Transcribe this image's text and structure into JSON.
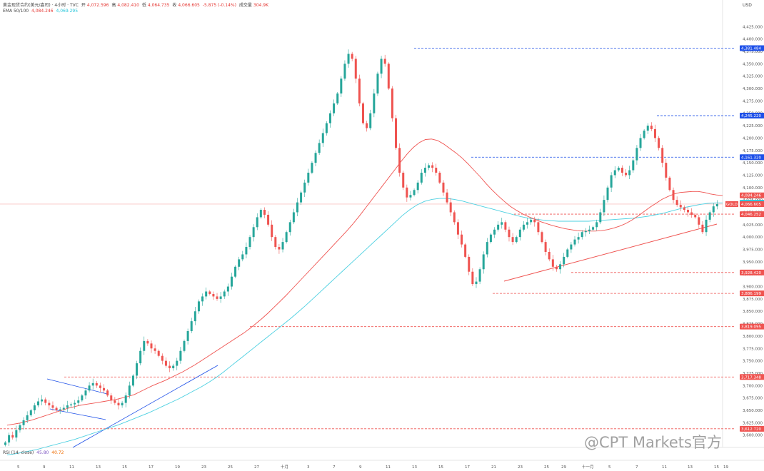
{
  "header": {
    "title": "黄金现货合约(美元/盎司) · 4小时 · TVC",
    "o_label": "开",
    "o": "4,072.596",
    "h_label": "高",
    "h": "4,082.410",
    "l_label": "低",
    "l": "4,064.735",
    "c_label": "收",
    "c": "4,066.605",
    "chg": "-5.875 (-0.14%)",
    "vol_label": "成交量",
    "vol": "304.9K",
    "ema_label": "EMA 50/100",
    "ema50": "4,084.246",
    "ema100": "4,069.295"
  },
  "rsi": {
    "label": "RSI (14, close)",
    "v1": "45.80",
    "v2": "40.72"
  },
  "currency": "USD",
  "watermark": "@CPT Markets官方",
  "colors": {
    "up": "#26a69a",
    "down": "#ef5350",
    "ema50": "#ef5350",
    "ema100": "#4dd0e1",
    "blue": "#1e50e8",
    "price_tag": "#ef5350"
  },
  "chart_data": {
    "type": "candlestick",
    "timeframe": "4h",
    "ylim": [
      3575,
      4450
    ],
    "y_ticks": [
      "4,425.000",
      "4,400.000",
      "4,375.000",
      "4,350.000",
      "4,325.000",
      "4,300.000",
      "4,275.000",
      "4,250.000",
      "4,225.000",
      "4,200.000",
      "4,175.000",
      "4,150.000",
      "4,125.000",
      "4,100.000",
      "4,075.000",
      "4,050.000",
      "4,025.000",
      "4,000.000",
      "3,975.000",
      "3,950.000",
      "3,925.000",
      "3,900.000",
      "3,875.000",
      "3,850.000",
      "3,825.000",
      "3,800.000",
      "3,775.000",
      "3,750.000",
      "3,725.000",
      "3,700.000",
      "3,675.000",
      "3,650.000",
      "3,625.000",
      "3,600.000"
    ],
    "x_ticks": [
      "5",
      "9",
      "11",
      "13",
      "15",
      "17",
      "19",
      "23",
      "25",
      "27",
      "十月",
      "3",
      "7",
      "9",
      "11",
      "13",
      "15",
      "17",
      "21",
      "23",
      "25",
      "29",
      "十一月",
      "5",
      "7",
      "11",
      "13",
      "15",
      "19"
    ],
    "levels": [
      {
        "value": 4381.484,
        "label": "4,381.484",
        "style": "blue"
      },
      {
        "value": 4245.22,
        "label": "4,245.220",
        "style": "blue"
      },
      {
        "value": 4161.32,
        "label": "4,161.320",
        "style": "blue"
      },
      {
        "value": 4046.252,
        "label": "4,046.252",
        "style": "red"
      },
      {
        "value": 3928.42,
        "label": "3,928.420",
        "style": "red"
      },
      {
        "value": 3886.199,
        "label": "3,886.199",
        "style": "red"
      },
      {
        "value": 3819.095,
        "label": "3,819.095",
        "style": "red"
      },
      {
        "value": 3717.348,
        "label": "3,717.348",
        "style": "red"
      },
      {
        "value": 3612.72,
        "label": "3,612.720",
        "style": "red"
      }
    ],
    "tags": [
      {
        "value": 4084.246,
        "label": "4,084.246",
        "color": "#ef5350"
      },
      {
        "value": 4069.295,
        "label": "4,069.295",
        "color": "#26c6da"
      },
      {
        "value": 4066.605,
        "label": "4,066.605",
        "color": "#ef5350",
        "symbol": "GOLD"
      }
    ],
    "closes": [
      3585,
      3600,
      3595,
      3610,
      3620,
      3630,
      3640,
      3650,
      3660,
      3668,
      3672,
      3665,
      3660,
      3655,
      3650,
      3652,
      3655,
      3660,
      3662,
      3665,
      3670,
      3680,
      3690,
      3700,
      3705,
      3700,
      3695,
      3690,
      3680,
      3670,
      3665,
      3660,
      3665,
      3680,
      3700,
      3720,
      3745,
      3770,
      3790,
      3785,
      3775,
      3770,
      3760,
      3750,
      3740,
      3735,
      3740,
      3750,
      3770,
      3790,
      3810,
      3830,
      3850,
      3870,
      3880,
      3890,
      3885,
      3880,
      3875,
      3880,
      3890,
      3900,
      3920,
      3940,
      3955,
      3965,
      3980,
      4000,
      4020,
      4040,
      4055,
      4045,
      4025,
      4000,
      3980,
      3975,
      3990,
      4010,
      4030,
      4050,
      4070,
      4090,
      4110,
      4130,
      4150,
      4170,
      4190,
      4210,
      4230,
      4250,
      4270,
      4290,
      4320,
      4350,
      4370,
      4360,
      4320,
      4270,
      4230,
      4220,
      4250,
      4290,
      4330,
      4360,
      4350,
      4300,
      4240,
      4180,
      4130,
      4100,
      4080,
      4085,
      4095,
      4110,
      4130,
      4140,
      4145,
      4140,
      4130,
      4110,
      4090,
      4070,
      4050,
      4030,
      4005,
      3985,
      3960,
      3930,
      3905,
      3910,
      3935,
      3965,
      3990,
      4005,
      4015,
      4025,
      4030,
      4015,
      4000,
      3990,
      4000,
      4015,
      4025,
      4030,
      4035,
      4030,
      4010,
      3990,
      3970,
      3955,
      3940,
      3935,
      3945,
      3960,
      3975,
      3985,
      3995,
      4000,
      4010,
      4012,
      4015,
      4020,
      4030,
      4050,
      4075,
      4100,
      4125,
      4135,
      4140,
      4130,
      4125,
      4135,
      4155,
      4180,
      4200,
      4215,
      4225,
      4218,
      4200,
      4180,
      4150,
      4120,
      4095,
      4075,
      4065,
      4060,
      4055,
      4050,
      4045,
      4040,
      4025,
      4010,
      4035,
      4050,
      4062,
      4066.6
    ],
    "ema50": [
      3620,
      3622,
      3624,
      3627,
      3630,
      3634,
      3638,
      3642,
      3646,
      3650,
      3654,
      3657,
      3660,
      3662,
      3664,
      3666,
      3668,
      3670,
      3672,
      3675,
      3678,
      3682,
      3688,
      3694,
      3700,
      3705,
      3710,
      3716,
      3722,
      3728,
      3735,
      3742,
      3750,
      3758,
      3766,
      3774,
      3782,
      3790,
      3798,
      3806,
      3815,
      3825,
      3835,
      3846,
      3858,
      3870,
      3882,
      3895,
      3908,
      3921,
      3934,
      3947,
      3960,
      3973,
      3986,
      3999,
      4012,
      4026,
      4041,
      4057,
      4073,
      4089,
      4105,
      4121,
      4137,
      4153,
      4168,
      4181,
      4191,
      4197,
      4198,
      4195,
      4188,
      4179,
      4170,
      4160,
      4148,
      4135,
      4122,
      4108,
      4095,
      4083,
      4072,
      4062,
      4054,
      4047,
      4041,
      4036,
      4031,
      4027,
      4023,
      4020,
      4017,
      4015,
      4013,
      4012,
      4012,
      4012,
      4013,
      4015,
      4018,
      4022,
      4027,
      4034,
      4042,
      4051,
      4060,
      4068,
      4076,
      4082,
      4087,
      4090,
      4091,
      4092,
      4092,
      4090,
      4087,
      4085,
      4084
    ],
    "ema100": [
      3560,
      3562,
      3565,
      3568,
      3571,
      3575,
      3579,
      3583,
      3587,
      3591,
      3596,
      3601,
      3606,
      3611,
      3616,
      3621,
      3627,
      3633,
      3639,
      3645,
      3652,
      3659,
      3666,
      3673,
      3681,
      3689,
      3697,
      3706,
      3716,
      3727,
      3739,
      3751,
      3763,
      3775,
      3787,
      3799,
      3811,
      3823,
      3835,
      3848,
      3861,
      3875,
      3889,
      3903,
      3917,
      3931,
      3945,
      3959,
      3973,
      3987,
      4001,
      4015,
      4029,
      4043,
      4055,
      4065,
      4072,
      4076,
      4078,
      4078,
      4076,
      4073,
      4069,
      4065,
      4061,
      4057,
      4053,
      4049,
      4045,
      4041,
      4038,
      4036,
      4034,
      4033,
      4032,
      4032,
      4032,
      4032,
      4032,
      4033,
      4034,
      4035,
      4036,
      4037,
      4038,
      4040,
      4042,
      4045,
      4048,
      4052,
      4056,
      4060,
      4063,
      4066,
      4068,
      4069,
      4069
    ]
  }
}
